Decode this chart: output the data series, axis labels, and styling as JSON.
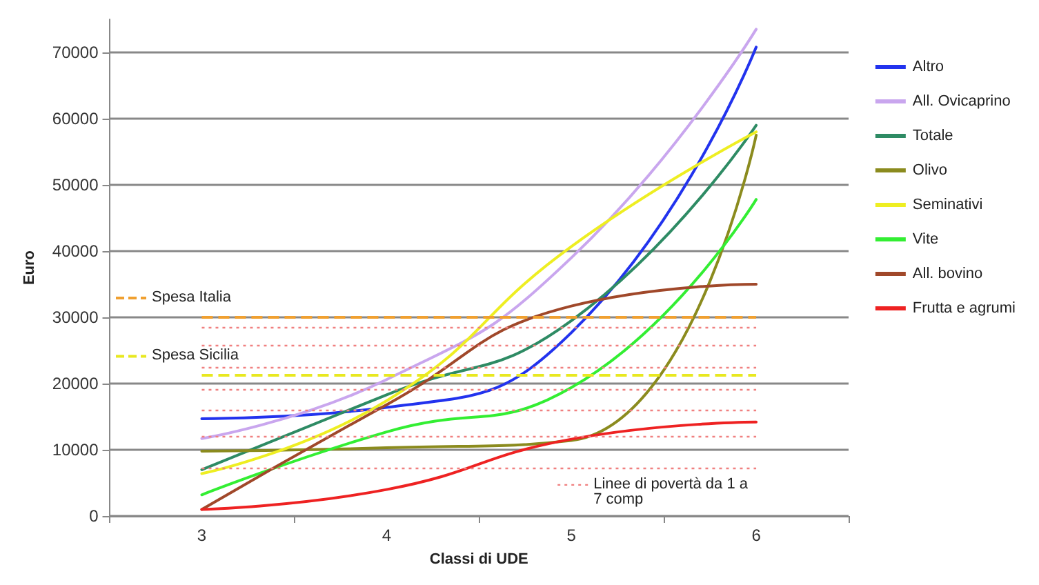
{
  "chart_data": {
    "type": "line",
    "xlabel": "Classi di UDE",
    "ylabel": "Euro",
    "categories": [
      "3",
      "4",
      "5",
      "6"
    ],
    "series": [
      {
        "name": "Altro",
        "color": "#2233ee",
        "values": [
          14700,
          16400,
          27700,
          70800
        ]
      },
      {
        "name": "All. Ovicaprino",
        "color": "#c9a6ee",
        "values": [
          11700,
          20600,
          39000,
          73500
        ]
      },
      {
        "name": "Totale",
        "color": "#2e8b64",
        "values": [
          7000,
          18300,
          29500,
          59000
        ]
      },
      {
        "name": "Olivo",
        "color": "#8b8b1e",
        "values": [
          9800,
          10300,
          11400,
          57500
        ]
      },
      {
        "name": "Seminativi",
        "color": "#eeee22",
        "values": [
          6400,
          17400,
          40700,
          58000
        ]
      },
      {
        "name": "Vite",
        "color": "#33ee33",
        "values": [
          3200,
          12700,
          19400,
          47800
        ]
      },
      {
        "name": "All. bovino",
        "color": "#a0482a",
        "values": [
          1000,
          16800,
          31700,
          35000
        ]
      },
      {
        "name": "Frutta e agrumi",
        "color": "#ee2222",
        "values": [
          1000,
          4000,
          11600,
          14200
        ]
      }
    ],
    "ref_lines": [
      {
        "axis": "y",
        "value": 30000,
        "label": "Spesa Italia",
        "color": "#f0a030",
        "line_style": "dashed"
      },
      {
        "axis": "y",
        "value": 21200,
        "label": "Spesa Sicilia",
        "color": "#e8e820",
        "line_style": "dashed"
      },
      {
        "axis": "y",
        "value": 28500,
        "label": null,
        "color": "#f08080",
        "line_style": "dotted"
      },
      {
        "axis": "y",
        "value": 25800,
        "label": null,
        "color": "#f08080",
        "line_style": "dotted"
      },
      {
        "axis": "y",
        "value": 22500,
        "label": null,
        "color": "#f08080",
        "line_style": "dotted"
      },
      {
        "axis": "y",
        "value": 19200,
        "label": null,
        "color": "#f08080",
        "line_style": "dotted"
      },
      {
        "axis": "y",
        "value": 16000,
        "label": null,
        "color": "#f08080",
        "line_style": "dotted"
      },
      {
        "axis": "y",
        "value": 12000,
        "label": null,
        "color": "#f08080",
        "line_style": "dotted"
      },
      {
        "axis": "y",
        "value": 7200,
        "label": "Linee di povertà da 1 a 7 comp",
        "color": "#f08080",
        "line_style": "dotted"
      }
    ],
    "ylim": [
      0,
      75000
    ],
    "yticks": [
      0,
      10000,
      20000,
      30000,
      40000,
      50000,
      60000,
      70000
    ],
    "grid": "y",
    "legend": "right",
    "marker": "none",
    "line_style": "solid"
  }
}
